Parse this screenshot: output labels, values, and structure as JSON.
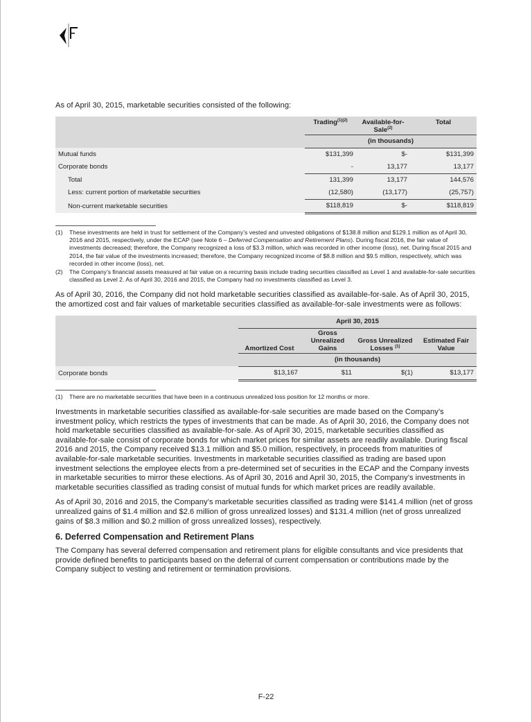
{
  "logo": {
    "text": "KF"
  },
  "intro1": "As of April 30, 2015, marketable securities consisted of the following:",
  "table1": {
    "headers": {
      "trading": "Trading",
      "trading_sup": "(1)(2)",
      "afs": "Available-for-Sale",
      "afs_sup": "(2)",
      "total": "Total",
      "units": "(in thousands)"
    },
    "rows": [
      {
        "label": "Mutual funds",
        "trading": "$131,399",
        "afs": "$-",
        "total": "$131,399"
      },
      {
        "label": "Corporate bonds",
        "trading": "-",
        "afs": "13,177",
        "total": "13,177"
      },
      {
        "label": "Total",
        "trading": "131,399",
        "afs": "13,177",
        "total": "144,576"
      },
      {
        "label": "Less: current portion of marketable securities",
        "trading": "(12,580)",
        "afs": "(13,177)",
        "total": "(25,757)"
      },
      {
        "label": "Non-current marketable securities",
        "trading": "$118,819",
        "afs": "$-",
        "total": "$118,819"
      }
    ]
  },
  "footnotes1": [
    {
      "num": "(1)",
      "pre": "These investments are held in trust for settlement of the Company’s vested and unvested obligations of $138.8 million and $129.1 million as of April 30, 2016 and 2015, respectively, under the ECAP (see Note 6 – ",
      "italic": "Deferred Compensation and Retirement Plans",
      "post": "). During fiscal 2016, the fair value of investments decreased; therefore, the Company recognized a loss of $3.3 million, which was recorded in other income (loss), net. During fiscal 2015 and 2014, the fair value of the investments increased; therefore, the Company recognized income of $8.8 million and $9.5 million, respectively, which was recorded in other income (loss), net."
    },
    {
      "num": "(2)",
      "pre": "The Company’s financial assets measured at fair value on a recurring basis include trading securities classified as Level 1 and available-for-sale securities classified as Level 2. As of April 30, 2016 and 2015, the Company had no investments classified as Level 3.",
      "italic": "",
      "post": ""
    }
  ],
  "intro2": "As of April 30, 2016, the Company did not hold marketable securities classified as available-for-sale. As of April 30, 2015, the amortized cost and fair values of marketable securities classified as available-for-sale investments were as follows:",
  "table2": {
    "period": "April 30, 2015",
    "headers": {
      "cost": "Amortized Cost",
      "gains": "Gross Unrealized Gains",
      "losses": "Gross Unrealized Losses",
      "losses_sup": "(1)",
      "fair": "Estimated Fair Value",
      "units": "(in thousands)"
    },
    "rows": [
      {
        "label": "Corporate bonds",
        "cost": "$13,167",
        "gains": "$11",
        "losses": "$(1)",
        "fair": "$13,177"
      }
    ]
  },
  "footnotes2": [
    {
      "num": "(1)",
      "text": "There are no marketable securities that have been in a continuous unrealized loss position for 12 months or more."
    }
  ],
  "para1": "Investments in marketable securities classified as available-for-sale securities are made based on the Company’s investment policy, which restricts the types of investments that can be made. As of April 30, 2016, the Company does not hold marketable securities classified as available-for-sale. As of April 30, 2015, marketable securities classified as available-for-sale consist of corporate bonds for which market prices for similar assets are readily available. During fiscal 2016 and 2015, the Company received $13.1 million and $5.0 million, respectively, in proceeds from maturities of available-for-sale marketable securities. Investments in marketable securities classified as trading are based upon investment selections the employee elects from a pre-determined set of securities in the ECAP and the Company invests in marketable securities to mirror these elections. As of April 30, 2016 and April 30, 2015, the Company’s investments in marketable securities classified as trading consist of mutual funds for which market prices are readily available.",
  "para2": "As of April 30, 2016 and 2015, the Company’s marketable securities classified as trading were $141.4 million (net of gross unrealized gains of $1.4 million and $2.6 million of gross unrealized losses) and $131.4 million (net of gross unrealized gains of $8.3 million and $0.2 million of gross unrealized losses), respectively.",
  "heading": "6. Deferred Compensation and Retirement Plans",
  "para3": "The Company has several deferred compensation and retirement plans for eligible consultants and vice presidents that provide defined benefits to participants based on the deferral of current compensation or contributions made by the Company subject to vesting and retirement or termination provisions.",
  "page_number": "F-22"
}
